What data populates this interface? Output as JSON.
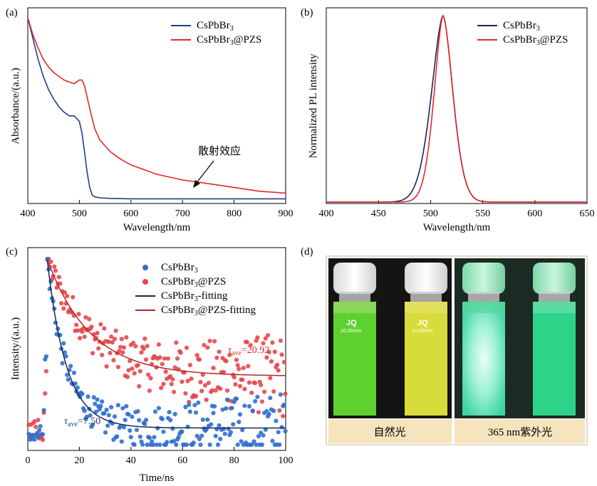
{
  "panels": {
    "a": "(a)",
    "b": "(b)",
    "c": "(c)",
    "d": "(d)"
  },
  "colors": {
    "blue": "#1f3e8c",
    "red": "#e0282b",
    "navy": "#1c2456",
    "blue_dot": "#2f6fcf",
    "red_dot": "#e5474b",
    "caption_bg": "#f5e4bd",
    "photo_bg": "#1a1a1a"
  },
  "chart_data": [
    {
      "id": "a",
      "type": "line",
      "title": "",
      "xlabel": "Wavelength/nm",
      "ylabel": "Absorbance/(a.u.)",
      "xlim": [
        400,
        900
      ],
      "ylim": [
        0,
        1
      ],
      "xticks": [
        400,
        500,
        600,
        700,
        800,
        900
      ],
      "yticks_shown": false,
      "legend": "top-right",
      "series": [
        {
          "name": "CsPbBr3",
          "color": "#1f3e8c",
          "x": [
            400,
            410,
            420,
            430,
            440,
            450,
            460,
            470,
            480,
            490,
            500,
            505,
            510,
            515,
            520,
            525,
            530,
            540,
            560,
            600,
            700,
            800,
            900
          ],
          "y": [
            0.97,
            0.86,
            0.75,
            0.66,
            0.59,
            0.54,
            0.5,
            0.47,
            0.45,
            0.45,
            0.42,
            0.36,
            0.26,
            0.15,
            0.07,
            0.03,
            0.02,
            0.015,
            0.012,
            0.01,
            0.01,
            0.01,
            0.01
          ]
        },
        {
          "name": "CsPbBr3@PZS",
          "color": "#e0282b",
          "x": [
            400,
            410,
            420,
            430,
            440,
            450,
            460,
            470,
            480,
            490,
            500,
            505,
            510,
            520,
            530,
            540,
            560,
            580,
            600,
            650,
            700,
            750,
            800,
            850,
            900
          ],
          "y": [
            0.97,
            0.88,
            0.81,
            0.75,
            0.71,
            0.68,
            0.66,
            0.64,
            0.63,
            0.62,
            0.64,
            0.64,
            0.61,
            0.49,
            0.38,
            0.32,
            0.26,
            0.22,
            0.19,
            0.14,
            0.11,
            0.09,
            0.07,
            0.05,
            0.04
          ]
        }
      ],
      "annotations": [
        {
          "text": "散射效应",
          "arrow_to": [
            715,
            0.09
          ]
        }
      ]
    },
    {
      "id": "b",
      "type": "line",
      "title": "",
      "xlabel": "Wavelength/nm",
      "ylabel": "Normalized PL intensity",
      "xlim": [
        400,
        650
      ],
      "ylim": [
        0,
        1.05
      ],
      "xticks": [
        400,
        450,
        500,
        550,
        600,
        650
      ],
      "yticks_shown": false,
      "legend": "top-right",
      "series": [
        {
          "name": "CsPbBr3",
          "color": "#1c2456",
          "peak": 512,
          "fwhm_left": 13,
          "fwhm_right": 11
        },
        {
          "name": "CsPbBr3@PZS",
          "color": "#e0282b",
          "peak": 512,
          "fwhm_left": 10,
          "fwhm_right": 11
        }
      ]
    },
    {
      "id": "c",
      "type": "scatter",
      "title": "",
      "xlabel": "Time/ns",
      "ylabel": "Intensity/(a.u.)",
      "xlim": [
        0,
        100
      ],
      "xticks": [
        0,
        20,
        40,
        60,
        80,
        100
      ],
      "yticks_shown": false,
      "legend": "top-right",
      "series": [
        {
          "name": "CsPbBr3",
          "marker": "circle",
          "color": "#2f6fcf",
          "tau_ave": 7.5
        },
        {
          "name": "CsPbBr3@PZS",
          "marker": "circle",
          "color": "#e5474b",
          "tau_ave": 20.92
        },
        {
          "name": "CsPbBr3-fitting",
          "marker": "line",
          "color": "#1c2456"
        },
        {
          "name": "CsPbBr3@PZS-fitting",
          "marker": "line",
          "color": "#b3262a"
        }
      ],
      "annotations": [
        {
          "symbol": "τ",
          "sub": "ave",
          "text": "=20.92",
          "color": "#e0282b"
        },
        {
          "symbol": "τ",
          "sub": "ave",
          "text": "=7.50",
          "color": "#1f3e8c"
        }
      ]
    }
  ],
  "legend_a": [
    {
      "base": "CsPbBr",
      "sub": "3",
      "suffix": ""
    },
    {
      "base": "CsPbBr",
      "sub": "3",
      "suffix": "@PZS"
    }
  ],
  "legend_b": [
    {
      "base": "CsPbBr",
      "sub": "3",
      "suffix": ""
    },
    {
      "base": "CsPbBr",
      "sub": "3",
      "suffix": "@PZS"
    }
  ],
  "legend_c": [
    {
      "base": "CsPbBr",
      "sub": "3",
      "suffix": ""
    },
    {
      "base": "CsPbBr",
      "sub": "3",
      "suffix": "@PZS"
    },
    {
      "base": "CsPbBr",
      "sub": "3",
      "suffix": "-fitting"
    },
    {
      "base": "CsPbBr",
      "sub": "3",
      "suffix": "@PZS-fitting"
    }
  ],
  "photo": {
    "caption_left": "自然光",
    "caption_right": "365 nm紫外光",
    "vial_label": "JQ",
    "vial_sublabel": "10.00mm"
  }
}
